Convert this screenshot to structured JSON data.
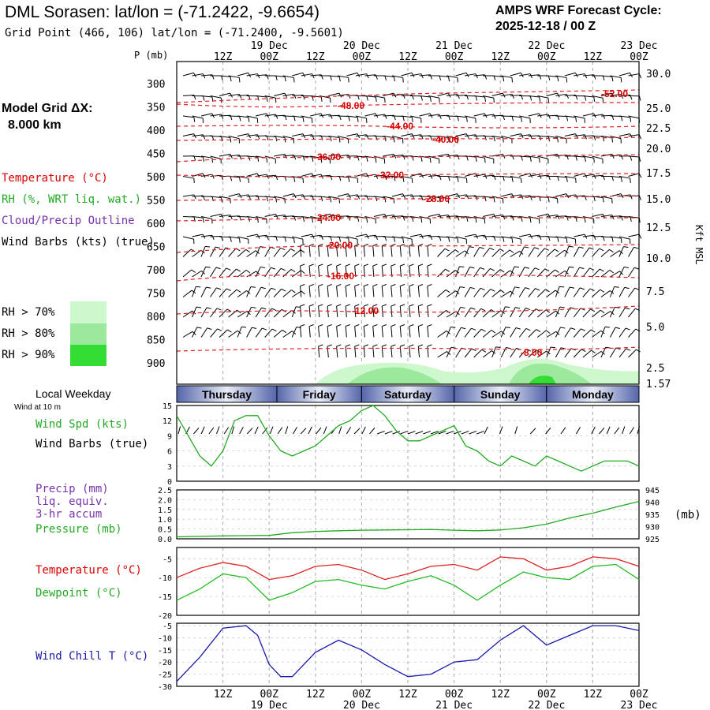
{
  "header": {
    "title": "DML Sorasen:  lat/lon = (-71.2422, -9.6654)",
    "grid_point": "Grid Point (466, 106) lat/lon = (-71.2400, -9.5601)",
    "cycle_line1": "AMPS WRF Forecast Cycle:",
    "cycle_line2": "2025-12-18 / 00  Z"
  },
  "left_panel": {
    "model_grid": "Model Grid ΔX:",
    "grid_km": "8.000 km",
    "temperature_label": "Temperature (°C)",
    "rh_label": "RH (%, WRT liq. wat.)",
    "cloud_label": "Cloud/Precip Outline",
    "wind_barbs_label": "Wind Barbs (kts) (true)",
    "rh_legend": [
      "RH > 70%",
      "RH > 80%",
      "RH > 90%"
    ],
    "rh_colors": [
      "#cdf7cd",
      "#9ce89c",
      "#33dd33"
    ],
    "local_weekday": "Local Weekday",
    "wind_at_10m": "Wind at 10 m",
    "wind_spd_label": "Wind Spd (kts)",
    "wind_barbs_true": "Wind Barbs (true)",
    "precip_label": "Precip (mm)",
    "liq_equiv": "liq. equiv.",
    "accum": "3-hr accum",
    "pressure_label": "Pressure (mb)",
    "temp2_label": "Temperature (°C)",
    "dewpoint_label": "Dewpoint (°C)",
    "windchill_label": "Wind Chill T (°C)"
  },
  "axes": {
    "p_unit": "P (mb)",
    "pressure_levels": [
      "300",
      "350",
      "400",
      "450",
      "500",
      "550",
      "600",
      "650",
      "700",
      "750",
      "800",
      "850",
      "900"
    ],
    "height_ticks": [
      "30.0",
      "25.0",
      "22.5",
      "20.0",
      "17.5",
      "15.0",
      "12.5",
      "10.0",
      "7.5",
      "5.0",
      "2.5",
      "1.57"
    ],
    "height_unit": "Kft MSL",
    "time_hours": [
      "12Z",
      "00Z",
      "12Z",
      "00Z",
      "12Z",
      "00Z",
      "12Z",
      "00Z",
      "12Z",
      "00Z"
    ],
    "time_dates_top": [
      "19 Dec",
      "20 Dec",
      "21 Dec",
      "22 Dec",
      "23 Dec"
    ],
    "time_dates_bottom": [
      "19 Dec",
      "20 Dec",
      "21 Dec",
      "22 Dec",
      "23 Dec"
    ],
    "pressure_unit": "(mb)"
  },
  "weekdays": [
    "Thursday",
    "Friday",
    "Saturday",
    "Sunday",
    "Monday"
  ],
  "chart_data": [
    {
      "type": "line",
      "title": "",
      "ylabel": "P (mb)",
      "isotherm_labels": [
        "-52.00",
        "-48.00",
        "-44.00",
        "-40.00",
        "-36.00",
        "-32.00",
        "-28.00",
        "-24.00",
        "-20.00",
        "-16.00",
        "-12.00",
        "-8.00"
      ],
      "isotherm_values": [
        -52,
        -48,
        -44,
        -40,
        -36,
        -32,
        -28,
        -24,
        -20,
        -16,
        -12,
        -8
      ]
    },
    {
      "type": "line",
      "ylabel": "Wind Spd (kts)",
      "y_ticks": [
        "15",
        "12",
        "9",
        "6",
        "3",
        "0"
      ],
      "ylim": [
        0,
        15
      ],
      "x": [
        0,
        3,
        6,
        9,
        12,
        15,
        18,
        21,
        24,
        27,
        30,
        33,
        36,
        39,
        42,
        45,
        48,
        51,
        54,
        57,
        60,
        63,
        66,
        69,
        72,
        75,
        78,
        81,
        84,
        87,
        90,
        93,
        96,
        99,
        102,
        105,
        108,
        111,
        114,
        117,
        120
      ],
      "values": [
        13,
        9,
        5,
        3,
        6,
        12,
        13,
        13,
        9,
        6,
        5,
        6,
        7,
        9,
        11,
        12,
        14,
        15,
        13,
        10,
        8,
        8,
        9,
        10,
        11,
        7,
        6,
        4,
        3,
        5,
        4,
        3,
        5,
        4,
        3,
        2,
        3,
        4,
        4,
        4,
        3
      ]
    },
    {
      "type": "line",
      "ylabel": "Precip (mm) / Pressure (mb)",
      "precip_ticks": [
        "2.5",
        "2.0",
        "1.5",
        "1.0",
        "0.5",
        "0.0"
      ],
      "pressure_ticks": [
        "945",
        "940",
        "935",
        "930",
        "925"
      ],
      "ylim_pressure": [
        925,
        945
      ],
      "x": [
        0,
        6,
        12,
        18,
        24,
        30,
        36,
        42,
        48,
        54,
        60,
        66,
        72,
        78,
        84,
        90,
        96,
        102,
        108,
        114,
        120
      ],
      "pressure": [
        925.8,
        926.0,
        926.2,
        926.3,
        926.4,
        927.5,
        928.0,
        928.3,
        928.5,
        928.6,
        928.7,
        928.8,
        928.5,
        928.3,
        928.6,
        929.5,
        931.0,
        933.5,
        935.5,
        938.0,
        940.3
      ]
    },
    {
      "type": "line",
      "ylabel": "Temperature / Dewpoint (°C)",
      "y_ticks": [
        "-5",
        "-10",
        "-15",
        "-20"
      ],
      "ylim": [
        -20,
        -2
      ],
      "x": [
        0,
        6,
        12,
        18,
        24,
        30,
        36,
        42,
        48,
        54,
        60,
        66,
        72,
        78,
        84,
        90,
        96,
        102,
        108,
        114,
        120
      ],
      "series": [
        {
          "name": "Temperature (°C)",
          "values": [
            -10,
            -7.5,
            -6,
            -7,
            -10.5,
            -9.5,
            -7,
            -6.5,
            -8,
            -10.5,
            -9,
            -7,
            -6.5,
            -8,
            -4.5,
            -5,
            -8,
            -7,
            -4.5,
            -5,
            -7
          ]
        },
        {
          "name": "Dewpoint (°C)",
          "values": [
            -16,
            -13,
            -9,
            -10,
            -16,
            -14,
            -11,
            -10.5,
            -12,
            -13,
            -11,
            -9.5,
            -12,
            -16,
            -12,
            -8.5,
            -10,
            -10.5,
            -7,
            -6.5,
            -10.5
          ]
        }
      ]
    },
    {
      "type": "line",
      "ylabel": "Wind Chill T (°C)",
      "y_ticks": [
        "-5",
        "-10",
        "-15",
        "-20",
        "-25",
        "-30"
      ],
      "ylim": [
        -30,
        -4
      ],
      "x": [
        0,
        6,
        12,
        18,
        21,
        24,
        27,
        30,
        36,
        42,
        48,
        54,
        60,
        66,
        72,
        78,
        84,
        90,
        96,
        102,
        108,
        114,
        120
      ],
      "values": [
        -28,
        -18,
        -6,
        -5,
        -9,
        -21,
        -26,
        -26,
        -16,
        -11,
        -15,
        -21,
        -26,
        -25,
        -20,
        -19,
        -11,
        -5,
        -13,
        -9,
        -5,
        -5,
        -7
      ]
    }
  ]
}
